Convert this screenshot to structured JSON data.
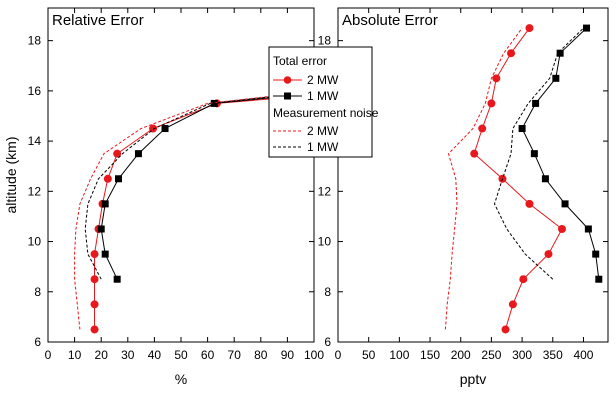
{
  "figure": {
    "ylabel": "altitude (km)",
    "legend": {
      "section1_title": "Total error",
      "section2_title": "Measurement noise",
      "entries": [
        "2 MW",
        "1 MW",
        "2 MW",
        "1 MW"
      ]
    }
  },
  "colors": {
    "red": "#e8191d",
    "black": "#000000"
  },
  "chart_data": [
    {
      "type": "line",
      "title": "Relative Error",
      "xlabel": "%",
      "ylabel": "altitude (km)",
      "xlim": [
        0,
        100
      ],
      "ylim": [
        6,
        19.3
      ],
      "xticks": [
        0,
        10,
        20,
        30,
        40,
        50,
        60,
        70,
        80,
        90,
        100
      ],
      "yticks": [
        6,
        8,
        10,
        12,
        14,
        16,
        18
      ],
      "grid": false,
      "legend_position": "top-right",
      "series": [
        {
          "name": "Total error 2 MW",
          "style": "solid",
          "marker": "circle",
          "color": "#e8191d",
          "points": [
            [
              17.5,
              6.5
            ],
            [
              17.5,
              7.5
            ],
            [
              17.5,
              8.5
            ],
            [
              17.5,
              9.5
            ],
            [
              19,
              10.5
            ],
            [
              20.5,
              11.5
            ],
            [
              22.5,
              12.5
            ],
            [
              26,
              13.5
            ],
            [
              39.5,
              14.5
            ],
            [
              63.5,
              15.5
            ],
            [
              86,
              15.7
            ]
          ]
        },
        {
          "name": "Total error 1 MW",
          "style": "solid",
          "marker": "square",
          "color": "#000000",
          "points": [
            [
              26,
              8.5
            ],
            [
              21.5,
              9.5
            ],
            [
              20,
              10.5
            ],
            [
              21.5,
              11.5
            ],
            [
              26.5,
              12.5
            ],
            [
              34,
              13.5
            ],
            [
              44,
              14.5
            ],
            [
              62.5,
              15.5
            ],
            [
              100,
              15.9
            ]
          ]
        },
        {
          "name": "Measurement noise 2 MW",
          "style": "dashed",
          "color": "#e8191d",
          "points": [
            [
              12,
              6.5
            ],
            [
              11,
              7.5
            ],
            [
              10,
              8.5
            ],
            [
              10,
              9.5
            ],
            [
              10.5,
              10.5
            ],
            [
              12,
              11.5
            ],
            [
              16,
              12.5
            ],
            [
              21,
              13.5
            ],
            [
              35,
              14.5
            ],
            [
              60,
              15.5
            ],
            [
              85,
              15.8
            ]
          ]
        },
        {
          "name": "Measurement noise 1 MW",
          "style": "dashed",
          "color": "#000000",
          "points": [
            [
              20,
              8.5
            ],
            [
              15,
              9.5
            ],
            [
              14,
              10.5
            ],
            [
              15,
              11.5
            ],
            [
              19,
              12.5
            ],
            [
              28,
              13.5
            ],
            [
              40,
              14.5
            ],
            [
              61,
              15.5
            ],
            [
              100,
              15.95
            ]
          ]
        }
      ]
    },
    {
      "type": "line",
      "title": "Absolute Error",
      "xlabel": "pptv",
      "ylabel": "altitude (km)",
      "xlim": [
        0,
        440
      ],
      "ylim": [
        6,
        19.3
      ],
      "xticks": [
        0,
        50,
        100,
        150,
        200,
        250,
        300,
        350,
        400
      ],
      "yticks": [
        6,
        8,
        10,
        12,
        14,
        16,
        18
      ],
      "grid": false,
      "series": [
        {
          "name": "Total error 2 MW",
          "style": "solid",
          "marker": "circle",
          "color": "#e8191d",
          "points": [
            [
              273,
              6.5
            ],
            [
              285,
              7.5
            ],
            [
              302,
              8.5
            ],
            [
              343,
              9.5
            ],
            [
              365,
              10.5
            ],
            [
              312,
              11.5
            ],
            [
              268,
              12.5
            ],
            [
              222,
              13.5
            ],
            [
              235,
              14.5
            ],
            [
              250,
              15.5
            ],
            [
              258,
              16.5
            ],
            [
              282,
              17.5
            ],
            [
              312,
              18.5
            ]
          ]
        },
        {
          "name": "Total error 1 MW",
          "style": "solid",
          "marker": "square",
          "color": "#000000",
          "points": [
            [
              425,
              8.5
            ],
            [
              420,
              9.5
            ],
            [
              408,
              10.5
            ],
            [
              370,
              11.5
            ],
            [
              338,
              12.5
            ],
            [
              320,
              13.5
            ],
            [
              300,
              14.5
            ],
            [
              322,
              15.5
            ],
            [
              355,
              16.5
            ],
            [
              362,
              17.5
            ],
            [
              405,
              18.5
            ]
          ]
        },
        {
          "name": "Measurement noise 2 MW",
          "style": "dashed",
          "color": "#e8191d",
          "points": [
            [
              175,
              6.5
            ],
            [
              178,
              7.5
            ],
            [
              183,
              8.5
            ],
            [
              186,
              9.5
            ],
            [
              190,
              10.5
            ],
            [
              194,
              11.5
            ],
            [
              192,
              12.5
            ],
            [
              180,
              13.5
            ],
            [
              220,
              14.5
            ],
            [
              240,
              15.5
            ],
            [
              250,
              16.5
            ],
            [
              270,
              17.5
            ],
            [
              300,
              18.5
            ]
          ]
        },
        {
          "name": "Measurement noise 1 MW",
          "style": "dashed",
          "color": "#000000",
          "points": [
            [
              350,
              8.5
            ],
            [
              305,
              9.5
            ],
            [
              275,
              10.5
            ],
            [
              255,
              11.5
            ],
            [
              268,
              12.5
            ],
            [
              282,
              13.5
            ],
            [
              285,
              14.5
            ],
            [
              310,
              15.5
            ],
            [
              345,
              16.5
            ],
            [
              358,
              17.5
            ],
            [
              400,
              18.5
            ]
          ]
        }
      ]
    }
  ]
}
